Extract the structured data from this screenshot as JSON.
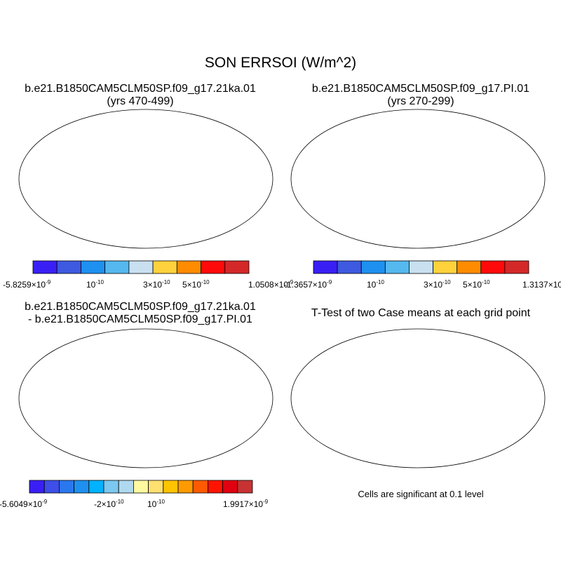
{
  "title": "SON ERRSOI (W/m^2)",
  "panels": {
    "p1": {
      "title_line1": "b.e21.B1850CAM5CLM50SP.f09_g17.21ka.01",
      "title_line2": "(yrs 470-499)"
    },
    "p2": {
      "title_line1": "b.e21.B1850CAM5CLM50SP.f09_g17.PI.01",
      "title_line2": "(yrs 270-299)"
    },
    "p3": {
      "title_line1": "b.e21.B1850CAM5CLM50SP.f09_g17.21ka.01",
      "title_line2": "- b.e21.B1850CAM5CLM50SP.f09_g17.PI.01"
    },
    "p4": {
      "title_line1": "T-Test of two Case means at each grid point",
      "footnote": "Cells are significant at 0.1 level"
    }
  },
  "colorbars": {
    "cb1": {
      "colors": [
        "#3a1ff5",
        "#3d5ae0",
        "#1e90f0",
        "#55b8ee",
        "#c8e0f0",
        "#ffd23c",
        "#ff8c00",
        "#ff0a0a",
        "#d42828"
      ],
      "labels": [
        {
          "base": "-5.8259×10",
          "exp": "-9"
        },
        {
          "base": "10",
          "exp": "-10"
        },
        {
          "base": "3×10",
          "exp": "-10"
        },
        {
          "base": "5×10",
          "exp": "-10"
        },
        {
          "base": "1.0508×10",
          "exp": "-9"
        }
      ]
    },
    "cb2": {
      "colors": [
        "#3a1ff5",
        "#3d5ae0",
        "#1e90f0",
        "#55b8ee",
        "#c8e0f0",
        "#ffd23c",
        "#ff8c00",
        "#ff0a0a",
        "#d42828"
      ],
      "labels": [
        {
          "base": "-1.3657×10",
          "exp": "-9"
        },
        {
          "base": "10",
          "exp": "-10"
        },
        {
          "base": "3×10",
          "exp": "-10"
        },
        {
          "base": "5×10",
          "exp": "-10"
        },
        {
          "base": "1.3137×10",
          "exp": "-9"
        }
      ]
    },
    "cb3": {
      "colors": [
        "#3a1ff5",
        "#3d4fe8",
        "#2a78ee",
        "#1e90f0",
        "#00b2ff",
        "#7cc8f0",
        "#b0d8ee",
        "#fffaa0",
        "#ffe070",
        "#ffc400",
        "#ff9a00",
        "#ff5a00",
        "#ff1400",
        "#e00010",
        "#c83232"
      ],
      "labels": [
        {
          "base": "-5.6049×10",
          "exp": "-9"
        },
        {
          "base": "-2×10",
          "exp": "-10"
        },
        {
          "base": "10",
          "exp": "-10"
        },
        {
          "base": "1.9917×10",
          "exp": "-9"
        }
      ]
    }
  }
}
